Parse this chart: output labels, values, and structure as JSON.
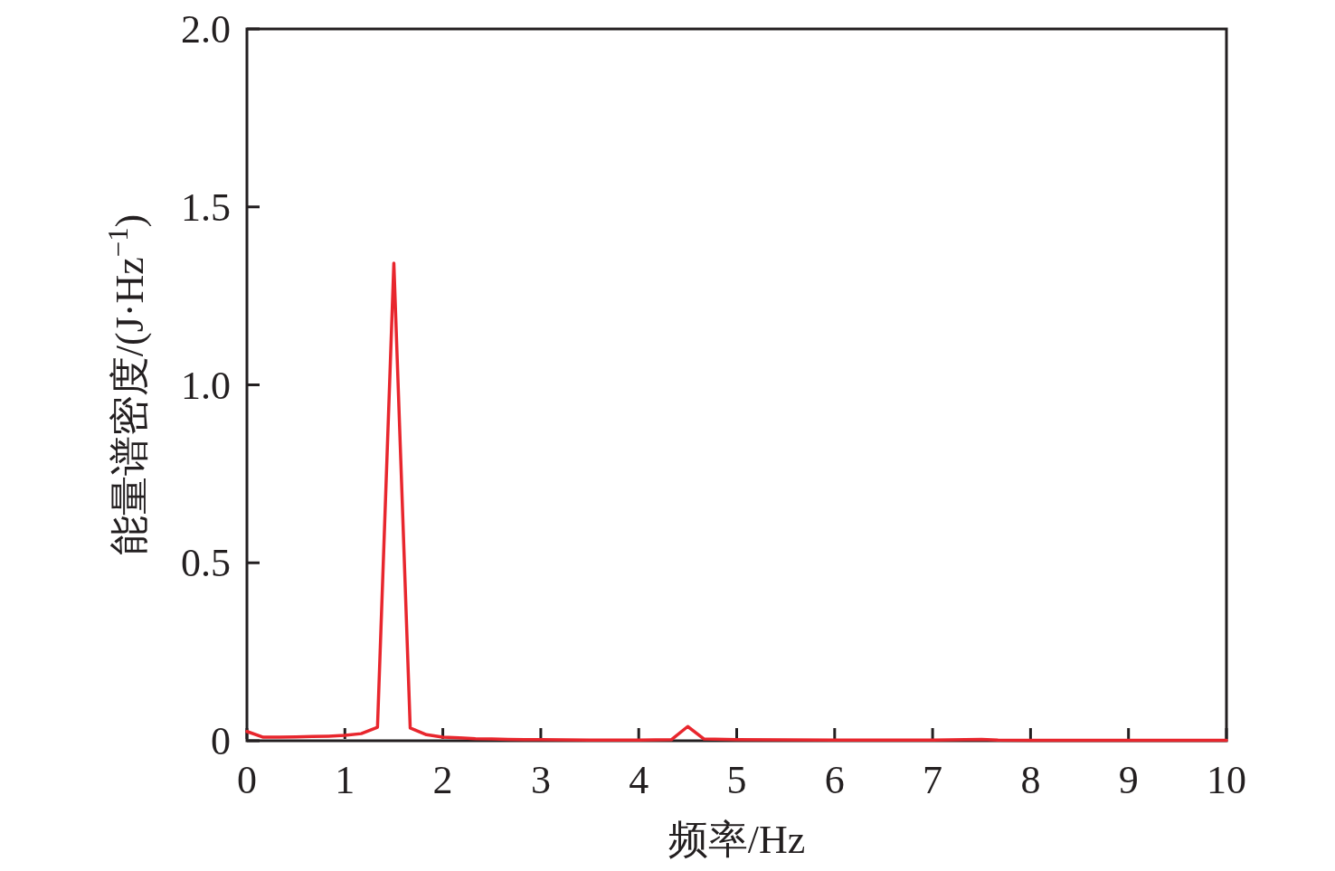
{
  "chart_data": {
    "type": "line",
    "xlabel": "频率/Hz",
    "ylabel": "能量谱密度/(J·Hz$^{−1}$)",
    "xlim": [
      0,
      10
    ],
    "ylim": [
      0,
      2.0
    ],
    "xticks": [
      0,
      1,
      2,
      3,
      4,
      5,
      6,
      7,
      8,
      9,
      10
    ],
    "yticks": [
      0,
      {
        "value": 0.5,
        "label": "0.5"
      },
      {
        "value": 1.0,
        "label": "1.0"
      },
      {
        "value": 1.5,
        "label": "1.5"
      },
      {
        "value": 2.0,
        "label": "2.0"
      }
    ],
    "grid": false,
    "marker": "none",
    "line_style": "solid",
    "series": [
      {
        "color": "#e8262d",
        "x": [
          0,
          0.167,
          0.333,
          0.5,
          0.667,
          0.833,
          1.0,
          1.167,
          1.333,
          1.5,
          1.667,
          1.833,
          2.0,
          2.167,
          2.333,
          2.5,
          2.667,
          2.833,
          3.0,
          3.5,
          4.0,
          4.333,
          4.5,
          4.667,
          5.0,
          6.0,
          7.0,
          7.333,
          7.5,
          7.667,
          8.0,
          9.0,
          10.0
        ],
        "values": [
          0.026,
          0.01,
          0.01,
          0.011,
          0.012,
          0.013,
          0.015,
          0.02,
          0.038,
          1.342,
          0.036,
          0.017,
          0.01,
          0.008,
          0.006,
          0.005,
          0.004,
          0.003,
          0.003,
          0.002,
          0.002,
          0.003,
          0.04,
          0.005,
          0.003,
          0.002,
          0.002,
          0.003,
          0.004,
          0.002,
          0.001,
          0.001,
          0.001
        ]
      }
    ]
  }
}
